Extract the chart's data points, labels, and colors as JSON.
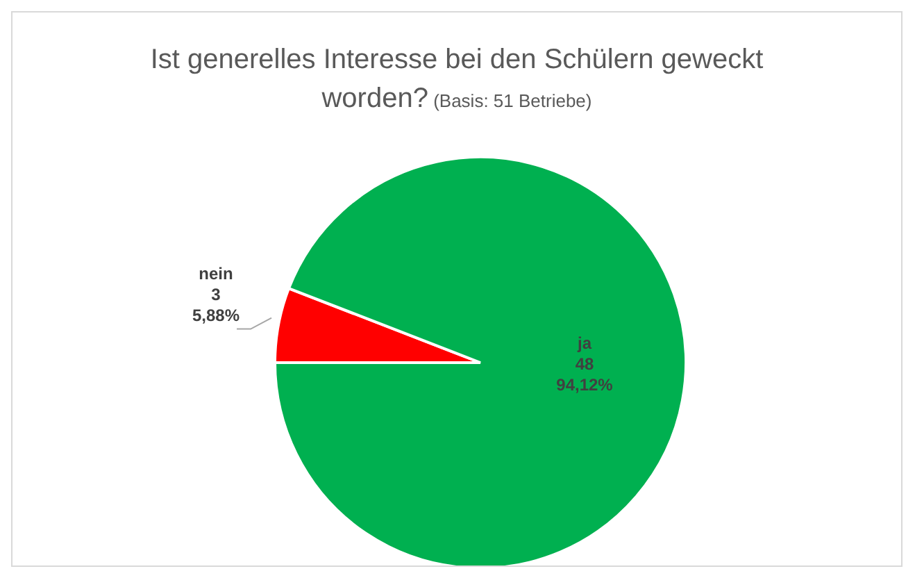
{
  "chart_data": {
    "type": "pie",
    "title": "Ist generelles Interesse bei den Schülern geweckt worden?",
    "subtitle": "(Basis: 51 Betriebe)",
    "categories": [
      "nein",
      "ja"
    ],
    "values": [
      3,
      48
    ],
    "colors": [
      "#ff0000",
      "#00b050"
    ],
    "value_labels": [
      "3\n5,88%",
      "48\n94,12%"
    ],
    "legend": false
  }
}
